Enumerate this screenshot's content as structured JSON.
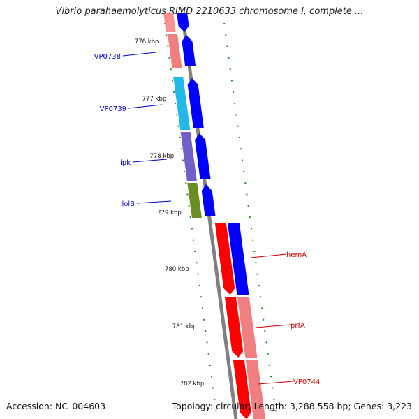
{
  "header": {
    "title": "Vibrio parahaemolyticus RIMD 2210633 chromosome I, complete ..."
  },
  "footer": {
    "accession": "Accession: NC_004603",
    "summary": "Topology: circular; Length: 3,288,558 bp; Genes: 3,223"
  },
  "colors": {
    "backbone": "#808080",
    "tick": "#228B22",
    "forward_label": "#0000C8",
    "reverse_label": "#CC0000",
    "cds_blue": "#0000FF",
    "cds_red": "#FF0000"
  },
  "scale": {
    "ticks": [
      "776 kbp",
      "777 kbp",
      "778 kbp",
      "779 kbp",
      "780 kbp",
      "781 kbp",
      "782 kbp"
    ]
  },
  "genes": [
    {
      "label": "VP0738",
      "strand": "forward",
      "gene_color": "#F08080",
      "cds_color": "#0000FF"
    },
    {
      "label": "VP0739",
      "strand": "forward",
      "gene_color": "#22B8E8",
      "cds_color": "#0000FF"
    },
    {
      "label": "ipk",
      "strand": "forward",
      "gene_color": "#7060C8",
      "cds_color": "#0000FF"
    },
    {
      "label": "lolB",
      "strand": "forward",
      "gene_color": "#6B8E23",
      "cds_color": "#0000FF"
    },
    {
      "label": "hemA",
      "strand": "reverse",
      "gene_color": "#FF0000",
      "cds_color": "#0000FF"
    },
    {
      "label": "prfA",
      "strand": "reverse",
      "gene_color": "#FF0000",
      "cds_color": "#F08080"
    },
    {
      "label": "VP0744",
      "strand": "reverse",
      "gene_color": "#FF0000",
      "cds_color": "#F08080"
    }
  ]
}
